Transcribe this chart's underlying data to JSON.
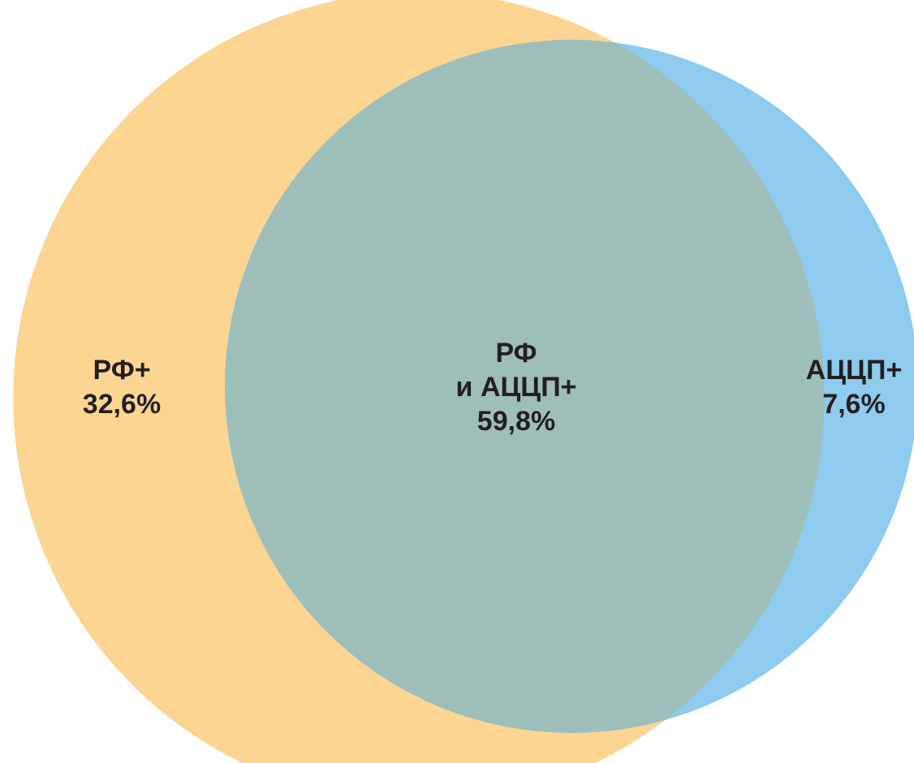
{
  "chart_data": {
    "type": "other",
    "categories": [
      "РФ+",
      "РФ\nи АЦЦП+",
      "АЦЦП+"
    ],
    "values": [
      32.6,
      59.8,
      7.6
    ],
    "value_labels": [
      "32,6%",
      "59,8%",
      "7,6%"
    ],
    "colors": [
      "#fcd593",
      "#9ebeb9",
      "#8ecbee"
    ]
  }
}
